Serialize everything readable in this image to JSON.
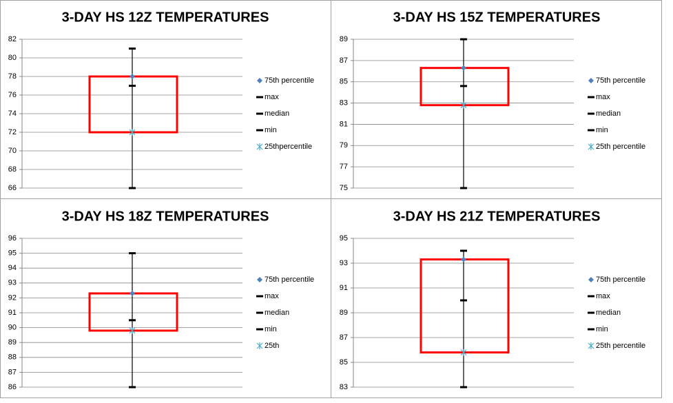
{
  "chart_data": [
    {
      "type": "box",
      "title": "3-DAY HS 12Z TEMPERATURES",
      "ylim": [
        66,
        82
      ],
      "yticks": [
        66,
        68,
        70,
        72,
        74,
        76,
        78,
        80,
        82
      ],
      "grid": true,
      "box_color": "#ff0000",
      "series": [
        {
          "name": "75th percentile",
          "color": "#4f81bd",
          "marker": "diamond",
          "values": [
            78
          ]
        },
        {
          "name": "max",
          "color": "#000000",
          "marker": "dash",
          "values": [
            81
          ]
        },
        {
          "name": "median",
          "color": "#000000",
          "marker": "dash",
          "values": [
            77
          ]
        },
        {
          "name": "min",
          "color": "#000000",
          "marker": "dash",
          "values": [
            66
          ]
        },
        {
          "name": "25thpercentile",
          "color": "#4bacc6",
          "marker": "star",
          "values": [
            72
          ]
        }
      ]
    },
    {
      "type": "box",
      "title": "3-DAY HS 15Z TEMPERATURES",
      "ylim": [
        75,
        89
      ],
      "yticks": [
        75,
        77,
        79,
        81,
        83,
        85,
        87,
        89
      ],
      "grid": true,
      "box_color": "#ff0000",
      "series": [
        {
          "name": "75th percentile",
          "color": "#4f81bd",
          "marker": "diamond",
          "values": [
            86.3
          ]
        },
        {
          "name": "max",
          "color": "#000000",
          "marker": "dash",
          "values": [
            89
          ]
        },
        {
          "name": "median",
          "color": "#000000",
          "marker": "dash",
          "values": [
            84.6
          ]
        },
        {
          "name": "min",
          "color": "#000000",
          "marker": "dash",
          "values": [
            75
          ]
        },
        {
          "name": "25th percentile",
          "color": "#4bacc6",
          "marker": "star",
          "values": [
            82.8
          ]
        }
      ]
    },
    {
      "type": "box",
      "title": "3-DAY HS 18Z TEMPERATURES",
      "ylim": [
        86,
        96
      ],
      "yticks": [
        86,
        87,
        88,
        89,
        90,
        91,
        92,
        93,
        94,
        95,
        96
      ],
      "grid": true,
      "box_color": "#ff0000",
      "series": [
        {
          "name": "75th percentile",
          "color": "#4f81bd",
          "marker": "diamond",
          "values": [
            92.3
          ]
        },
        {
          "name": "max",
          "color": "#000000",
          "marker": "dash",
          "values": [
            95
          ]
        },
        {
          "name": "median",
          "color": "#000000",
          "marker": "dash",
          "values": [
            90.5
          ]
        },
        {
          "name": "min",
          "color": "#000000",
          "marker": "dash",
          "values": [
            86
          ]
        },
        {
          "name": "25th",
          "color": "#4bacc6",
          "marker": "star",
          "values": [
            89.8
          ]
        }
      ]
    },
    {
      "type": "box",
      "title": "3-DAY HS 21Z TEMPERATURES",
      "ylim": [
        83,
        95
      ],
      "yticks": [
        83,
        85,
        87,
        89,
        91,
        93,
        95
      ],
      "grid": true,
      "box_color": "#ff0000",
      "series": [
        {
          "name": "75th percentile",
          "color": "#4f81bd",
          "marker": "diamond",
          "values": [
            93.3
          ]
        },
        {
          "name": "max",
          "color": "#000000",
          "marker": "dash",
          "values": [
            94
          ]
        },
        {
          "name": "median",
          "color": "#000000",
          "marker": "dash",
          "values": [
            90
          ]
        },
        {
          "name": "min",
          "color": "#000000",
          "marker": "dash",
          "values": [
            83
          ]
        },
        {
          "name": "25th percentile",
          "color": "#4bacc6",
          "marker": "star",
          "values": [
            85.8
          ]
        }
      ]
    }
  ]
}
